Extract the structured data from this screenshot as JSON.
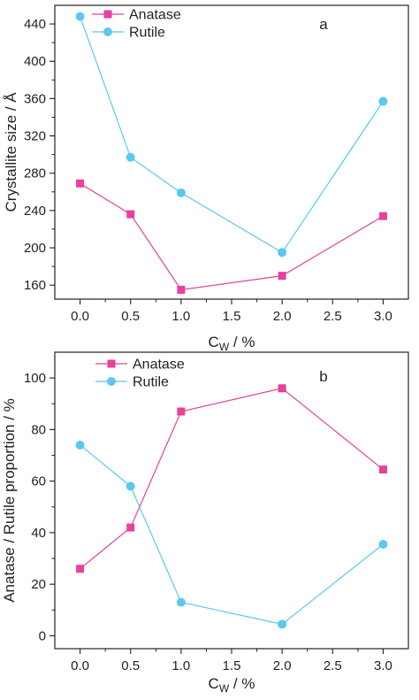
{
  "chart_data": [
    {
      "type": "line",
      "panel_label": "a",
      "xlabel": {
        "main": "C",
        "sub": "W",
        "suffix": " / %"
      },
      "ylabel": "Crystallite size / Å",
      "xlim": [
        -0.25,
        3.25
      ],
      "ylim": [
        145,
        460
      ],
      "xticks": [
        0.0,
        0.5,
        1.0,
        1.5,
        2.0,
        2.5,
        3.0
      ],
      "xtick_labels": [
        "0.0",
        "0.5",
        "1.0",
        "1.5",
        "2.0",
        "2.5",
        "3.0"
      ],
      "yticks": [
        160,
        200,
        240,
        280,
        320,
        360,
        400,
        440
      ],
      "ytick_labels": [
        "160",
        "200",
        "240",
        "280",
        "320",
        "360",
        "400",
        "440"
      ],
      "legend_position": "top-left",
      "series": [
        {
          "name": "Anatase",
          "marker": "square",
          "color": "#e8419a",
          "x": [
            0.0,
            0.5,
            1.0,
            2.0,
            3.0
          ],
          "y": [
            269,
            236,
            155,
            170,
            234
          ]
        },
        {
          "name": "Rutile",
          "marker": "circle",
          "color": "#5bc8f0",
          "x": [
            0.0,
            0.5,
            1.0,
            2.0,
            3.0
          ],
          "y": [
            448,
            297,
            259,
            195,
            357
          ]
        }
      ]
    },
    {
      "type": "line",
      "panel_label": "b",
      "xlabel": {
        "main": "C",
        "sub": "W",
        "suffix": " / %"
      },
      "ylabel": "Anatase / Rutile proportion / %",
      "xlim": [
        -0.25,
        3.25
      ],
      "ylim": [
        -5,
        110
      ],
      "xticks": [
        0.0,
        0.5,
        1.0,
        1.5,
        2.0,
        2.5,
        3.0
      ],
      "xtick_labels": [
        "0.0",
        "0.5",
        "1.0",
        "1.5",
        "2.0",
        "2.5",
        "3.0"
      ],
      "yticks": [
        0,
        20,
        40,
        60,
        80,
        100
      ],
      "ytick_labels": [
        "0",
        "20",
        "40",
        "60",
        "80",
        "100"
      ],
      "legend_position": "top-left",
      "series": [
        {
          "name": "Anatase",
          "marker": "square",
          "color": "#e8419a",
          "x": [
            0.0,
            0.5,
            1.0,
            2.0,
            3.0
          ],
          "y": [
            26,
            42,
            87,
            96,
            64.5
          ]
        },
        {
          "name": "Rutile",
          "marker": "circle",
          "color": "#5bc8f0",
          "x": [
            0.0,
            0.5,
            1.0,
            2.0,
            3.0
          ],
          "y": [
            74,
            58,
            13,
            4.5,
            35.5
          ]
        }
      ]
    }
  ]
}
